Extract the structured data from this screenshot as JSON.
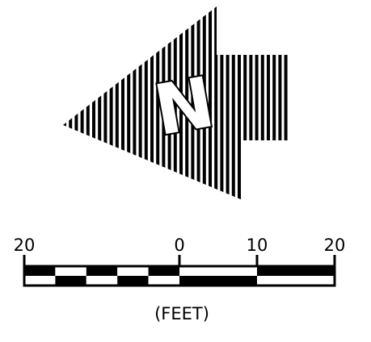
{
  "north_arrow": {
    "letter": "N"
  },
  "scale_bar": {
    "tick_labels": [
      "20",
      "0",
      "10",
      "20"
    ],
    "unit_label": "(FEET)"
  },
  "colors": {
    "ink": "#000000",
    "paper": "#ffffff"
  }
}
